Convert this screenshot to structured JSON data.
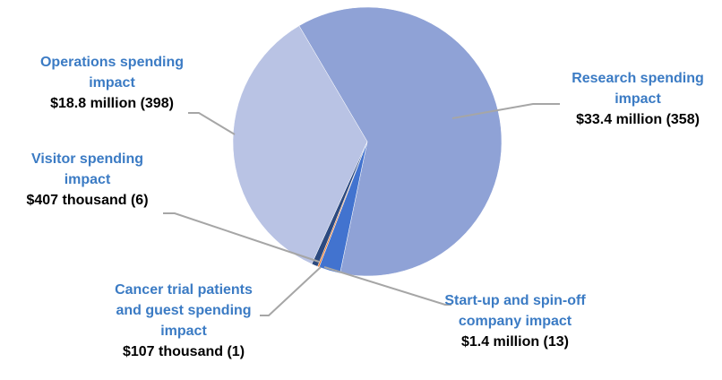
{
  "chart_data": {
    "type": "pie",
    "categories": [
      "Research spending impact",
      "Start-up and spin-off company impact",
      "Cancer trial patients and guest spending impact",
      "Visitor spending impact",
      "Operations spending impact"
    ],
    "values": [
      33.4,
      1.4,
      0.107,
      0.407,
      18.8
    ],
    "value_labels": [
      "$33.4 million (358)",
      "$1.4 million (13)",
      "$107 thousand (1)",
      "$407 thousand (6)",
      "$18.8 million (398)"
    ],
    "colors": [
      "#8fa2d6",
      "#4273cf",
      "#ed7d31",
      "#2c4a80",
      "#b9c3e4"
    ]
  }
}
